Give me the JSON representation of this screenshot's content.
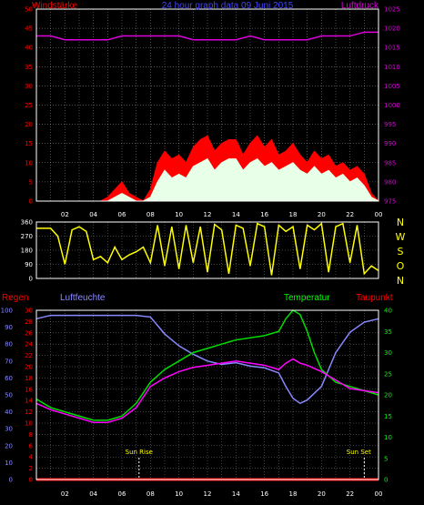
{
  "chart_data": [
    {
      "type": "bar",
      "panel": "wind",
      "title": "24 hour graph data  09 Juni 2015",
      "left_label": "Windstärke",
      "right_label": "Luftdruck",
      "x_ticks": [
        "02",
        "04",
        "06",
        "08",
        "10",
        "12",
        "14",
        "16",
        "18",
        "20",
        "22",
        "00"
      ],
      "y_left": {
        "ticks": [
          "0",
          "5",
          "10",
          "15",
          "20",
          "25",
          "30",
          "35",
          "40",
          "45",
          "50"
        ],
        "range": [
          0,
          50
        ]
      },
      "y_right": {
        "ticks": [
          "975",
          "980",
          "985",
          "990",
          "995",
          "1000",
          "1005",
          "1010",
          "1015",
          "1020",
          "1025"
        ],
        "range": [
          975,
          1025
        ]
      },
      "series": [
        {
          "name": "gust",
          "color": "#ff0000",
          "x": [
            0,
            1,
            2,
            3,
            4,
            4.5,
            5,
            5.5,
            6,
            6.5,
            7,
            7.5,
            8,
            8.5,
            9,
            9.5,
            10,
            10.5,
            11,
            11.5,
            12,
            12.5,
            13,
            13.5,
            14,
            14.5,
            15,
            15.5,
            16,
            16.5,
            17,
            17.5,
            18,
            18.5,
            19,
            19.5,
            20,
            20.5,
            21,
            21.5,
            22,
            22.5,
            23,
            23.5,
            24
          ],
          "values": [
            0,
            0,
            0,
            0,
            0,
            0,
            1,
            3,
            5,
            2,
            1,
            0,
            3,
            10,
            13,
            11,
            12,
            10,
            14,
            16,
            17,
            13,
            15,
            16,
            16,
            12,
            15,
            17,
            14,
            16,
            12,
            13,
            15,
            12,
            10,
            13,
            11,
            12,
            9,
            10,
            8,
            9,
            7,
            2,
            0
          ]
        },
        {
          "name": "mean",
          "color": "#e8ffe8",
          "x": [
            0,
            1,
            2,
            3,
            4,
            4.5,
            5,
            5.5,
            6,
            6.5,
            7,
            7.5,
            8,
            8.5,
            9,
            9.5,
            10,
            10.5,
            11,
            11.5,
            12,
            12.5,
            13,
            13.5,
            14,
            14.5,
            15,
            15.5,
            16,
            16.5,
            17,
            17.5,
            18,
            18.5,
            19,
            19.5,
            20,
            20.5,
            21,
            21.5,
            22,
            22.5,
            23,
            23.5,
            24
          ],
          "values": [
            0,
            0,
            0,
            0,
            0,
            0,
            0,
            1,
            2,
            1,
            0,
            0,
            1,
            5,
            8,
            6,
            7,
            6,
            9,
            10,
            11,
            8,
            10,
            11,
            11,
            8,
            10,
            11,
            9,
            10,
            8,
            9,
            10,
            8,
            7,
            9,
            7,
            8,
            6,
            7,
            5,
            6,
            4,
            1,
            0
          ]
        },
        {
          "name": "pressure",
          "color": "#dd00dd",
          "x": [
            0,
            1,
            2,
            3,
            4,
            5,
            6,
            7,
            8,
            9,
            10,
            11,
            12,
            13,
            14,
            15,
            16,
            17,
            18,
            19,
            20,
            21,
            22,
            23,
            24
          ],
          "values": [
            1018,
            1018,
            1017,
            1017,
            1017,
            1017,
            1018,
            1018,
            1018,
            1018,
            1018,
            1017,
            1017,
            1017,
            1017,
            1018,
            1017,
            1017,
            1017,
            1017,
            1018,
            1018,
            1018,
            1019,
            1019
          ]
        }
      ]
    },
    {
      "type": "line",
      "panel": "direction",
      "y_left": {
        "ticks": [
          "0",
          "90",
          "180",
          "270",
          "360"
        ],
        "range": [
          0,
          360
        ]
      },
      "y_right_labels": [
        "N",
        "W",
        "S",
        "O",
        "N"
      ],
      "series": [
        {
          "name": "direction",
          "color": "#ffff00",
          "x": [
            0,
            1,
            1.5,
            2,
            2.5,
            3,
            3.5,
            4,
            4.5,
            5,
            5.5,
            6,
            6.5,
            7,
            7.5,
            8,
            8.5,
            9,
            9.5,
            10,
            10.5,
            11,
            11.5,
            12,
            12.5,
            13,
            13.5,
            14,
            14.5,
            15,
            15.5,
            16,
            16.5,
            17,
            17.5,
            18,
            18.5,
            19,
            19.5,
            20,
            20.5,
            21,
            21.5,
            22,
            22.5,
            23,
            23.5,
            24
          ],
          "values": [
            320,
            320,
            270,
            90,
            310,
            330,
            300,
            120,
            140,
            100,
            200,
            120,
            150,
            170,
            200,
            100,
            340,
            80,
            330,
            60,
            340,
            100,
            330,
            40,
            345,
            310,
            30,
            340,
            320,
            80,
            350,
            330,
            20,
            340,
            300,
            330,
            60,
            340,
            310,
            350,
            40,
            330,
            350,
            100,
            340,
            30,
            80,
            50
          ]
        }
      ]
    },
    {
      "type": "line",
      "panel": "temperature",
      "left_labels": [
        "Regen",
        "Luftfeuchte"
      ],
      "right_labels": [
        "Temperatur",
        "Taupunkt"
      ],
      "annotations": [
        "Sun Rise",
        "Sun Set"
      ],
      "y_left": {
        "ticks": [
          "0",
          "10",
          "20",
          "30",
          "40",
          "50",
          "60",
          "70",
          "80",
          "90",
          "100"
        ],
        "range": [
          0,
          100
        ]
      },
      "y_left2": {
        "ticks": [
          "0",
          "2",
          "4",
          "6",
          "8",
          "10",
          "12",
          "14",
          "16",
          "18",
          "20",
          "22",
          "24",
          "26",
          "28",
          "30"
        ],
        "range": [
          0,
          30
        ]
      },
      "y_right": {
        "ticks": [
          "0",
          "5",
          "10",
          "15",
          "20",
          "25",
          "30",
          "35",
          "40"
        ],
        "range": [
          0,
          40
        ]
      },
      "series": [
        {
          "name": "Luftfeuchte",
          "color": "#8888ff",
          "axis": "left",
          "x": [
            0,
            1,
            2,
            3,
            4,
            5,
            6,
            7,
            8,
            9,
            10,
            11,
            12,
            13,
            14,
            15,
            16,
            17,
            17.5,
            18,
            18.5,
            19,
            20,
            21,
            22,
            23,
            24
          ],
          "values": [
            95,
            97,
            97,
            97,
            97,
            97,
            97,
            97,
            96,
            86,
            79,
            74,
            70,
            68,
            69,
            67,
            66,
            63,
            55,
            48,
            45,
            47,
            55,
            75,
            87,
            93,
            95
          ]
        },
        {
          "name": "Temperatur",
          "color": "#00dd00",
          "axis": "right",
          "x": [
            0,
            1,
            2,
            3,
            4,
            5,
            6,
            7,
            8,
            9,
            10,
            11,
            12,
            13,
            14,
            15,
            16,
            17,
            17.5,
            18,
            18.5,
            19,
            19.5,
            20,
            21,
            22,
            23,
            24
          ],
          "values": [
            19,
            17,
            16,
            15,
            14,
            14,
            15,
            18,
            23,
            26,
            28,
            30,
            31,
            32,
            33,
            33.5,
            34,
            35,
            38,
            40,
            39,
            35,
            30,
            26,
            23,
            22,
            21,
            20
          ]
        },
        {
          "name": "Taupunkt",
          "color": "#ff00ff",
          "axis": "right",
          "x": [
            0,
            1,
            2,
            3,
            4,
            5,
            6,
            7,
            8,
            9,
            10,
            11,
            12,
            13,
            14,
            15,
            16,
            17,
            17.5,
            18,
            18.5,
            19,
            20,
            21,
            22,
            23,
            24
          ],
          "values": [
            18,
            16.5,
            15.5,
            14.5,
            13.5,
            13.5,
            14.5,
            17,
            22,
            24,
            25.5,
            26.5,
            27,
            27.5,
            28,
            27.5,
            27,
            26,
            27.5,
            28.5,
            27.5,
            27,
            25.5,
            23.5,
            21.5,
            21,
            20.5
          ]
        },
        {
          "name": "Regen",
          "color": "#ff0000",
          "axis": "left",
          "x": [
            0,
            24
          ],
          "values": [
            0,
            0
          ]
        }
      ],
      "sun_rise_hour": 7.2,
      "sun_set_hour": 23.0
    }
  ],
  "colors": {
    "grid": "#ffffff",
    "frame": "#ffffff",
    "text_red": "#ff0000",
    "text_blue": "#4444ff",
    "text_magenta": "#dd00dd",
    "text_green": "#00ff00",
    "text_white": "#ffffff",
    "text_yellow": "#ffff00"
  }
}
